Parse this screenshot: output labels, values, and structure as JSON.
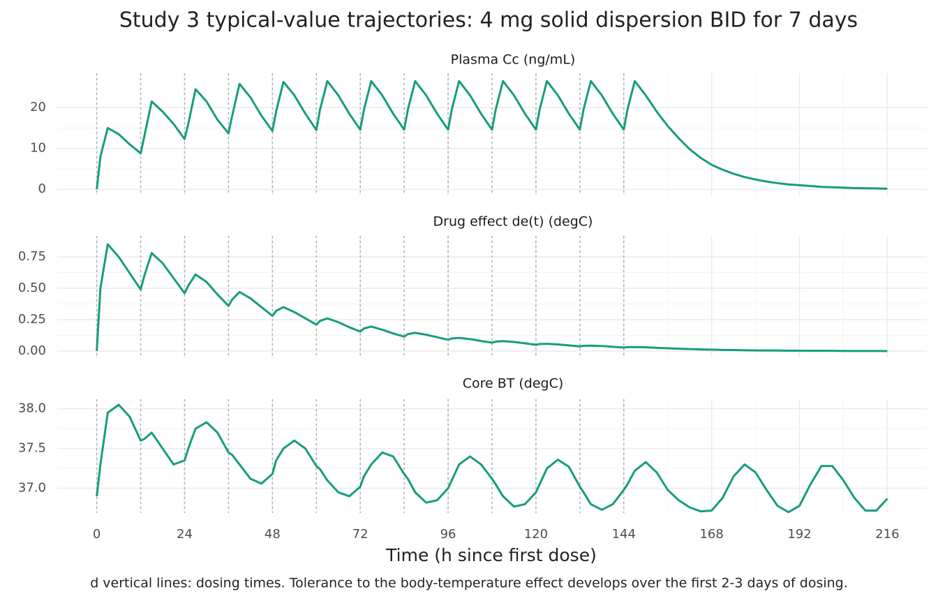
{
  "title": "Study 3 typical-value trajectories: 4 mg solid dispersion BID for 7 days",
  "caption": "d vertical lines: dosing times. Tolerance to the body-temperature effect develops over the first 2-3 days of dosing.",
  "dose_times": [
    0,
    12,
    24,
    36,
    48,
    60,
    72,
    84,
    96,
    108,
    120,
    132,
    144
  ],
  "chart_data": [
    {
      "type": "line",
      "title": "Plasma Cc (ng/mL)",
      "color": "#179c7d",
      "grid": true,
      "x": [
        0,
        1,
        3,
        6,
        9,
        12,
        13,
        15,
        18,
        21,
        24,
        25,
        27,
        30,
        33,
        36,
        37,
        39,
        42,
        45,
        48,
        49,
        51,
        54,
        57,
        60,
        61,
        63,
        66,
        69,
        72,
        73,
        75,
        78,
        81,
        84,
        85,
        87,
        90,
        93,
        96,
        97,
        99,
        102,
        105,
        108,
        109,
        111,
        114,
        117,
        120,
        121,
        123,
        126,
        129,
        132,
        133,
        135,
        138,
        141,
        144,
        145,
        147,
        150,
        153,
        156,
        159,
        162,
        165,
        168,
        171,
        174,
        177,
        180,
        183,
        186,
        189,
        192,
        195,
        198,
        201,
        204,
        207,
        210,
        213,
        216
      ],
      "values": [
        0,
        8,
        15,
        13.5,
        11,
        8.8,
        13,
        21.5,
        19,
        16,
        12.3,
        16,
        24.5,
        21.5,
        17,
        13.7,
        18,
        25.8,
        22.5,
        18,
        14.3,
        19,
        26.3,
        23,
        18.5,
        14.5,
        19.5,
        26.5,
        23,
        18.5,
        14.6,
        19.5,
        26.5,
        23,
        18.5,
        14.6,
        19.5,
        26.5,
        23,
        18.5,
        14.6,
        19.5,
        26.5,
        23,
        18.5,
        14.6,
        19.5,
        26.5,
        23,
        18.5,
        14.6,
        19.5,
        26.5,
        23,
        18.5,
        14.6,
        19.5,
        26.5,
        23,
        18.5,
        14.6,
        19.5,
        26.5,
        23,
        19,
        15.5,
        12.5,
        9.8,
        7.7,
        6.0,
        4.8,
        3.8,
        3.0,
        2.4,
        1.9,
        1.5,
        1.2,
        1.0,
        0.8,
        0.6,
        0.5,
        0.4,
        0.3,
        0.25,
        0.2,
        0.15
      ],
      "xlim": [
        -10.8,
        226.8
      ],
      "xticks": [
        0,
        24,
        48,
        72,
        96,
        120,
        144,
        168,
        192,
        216
      ],
      "ylim": [
        -1.5,
        28.4
      ],
      "yticks": [
        0,
        10,
        20
      ]
    },
    {
      "type": "line",
      "title": "Drug effect de(t) (degC)",
      "color": "#179c7d",
      "grid": true,
      "x": [
        0,
        1,
        3,
        6,
        9,
        12,
        13,
        15,
        18,
        21,
        24,
        25,
        27,
        30,
        33,
        36,
        37,
        39,
        42,
        45,
        48,
        49,
        51,
        54,
        57,
        60,
        61,
        63,
        66,
        69,
        72,
        73,
        75,
        78,
        81,
        84,
        85,
        87,
        90,
        93,
        96,
        97,
        99,
        102,
        105,
        108,
        109,
        111,
        114,
        117,
        120,
        121,
        123,
        126,
        129,
        132,
        133,
        135,
        138,
        141,
        144,
        145,
        147,
        150,
        153,
        156,
        159,
        162,
        165,
        168,
        171,
        174,
        177,
        180,
        183,
        186,
        189,
        192,
        195,
        198,
        201,
        204,
        207,
        210,
        213,
        216
      ],
      "values": [
        0,
        0.5,
        0.85,
        0.75,
        0.62,
        0.49,
        0.6,
        0.78,
        0.7,
        0.58,
        0.46,
        0.52,
        0.61,
        0.55,
        0.45,
        0.36,
        0.41,
        0.47,
        0.42,
        0.35,
        0.28,
        0.32,
        0.35,
        0.31,
        0.26,
        0.21,
        0.24,
        0.26,
        0.23,
        0.19,
        0.155,
        0.18,
        0.195,
        0.17,
        0.14,
        0.115,
        0.135,
        0.145,
        0.13,
        0.11,
        0.09,
        0.1,
        0.105,
        0.095,
        0.08,
        0.067,
        0.075,
        0.079,
        0.072,
        0.062,
        0.05,
        0.056,
        0.058,
        0.053,
        0.045,
        0.037,
        0.042,
        0.043,
        0.04,
        0.034,
        0.028,
        0.031,
        0.032,
        0.03,
        0.026,
        0.022,
        0.019,
        0.016,
        0.013,
        0.011,
        0.009,
        0.008,
        0.006,
        0.005,
        0.004,
        0.004,
        0.003,
        0.003,
        0.002,
        0.002,
        0.002,
        0.001,
        0.001,
        0.001,
        0.001,
        0
      ],
      "xlim": [
        -10.8,
        226.8
      ],
      "xticks": [
        0,
        24,
        48,
        72,
        96,
        120,
        144,
        168,
        192,
        216
      ],
      "ylim": [
        -0.05,
        0.917
      ],
      "yticks": [
        {
          "value": 0,
          "label": "0.00"
        },
        {
          "value": 0.25,
          "label": "0.25"
        },
        {
          "value": 0.5,
          "label": "0.50"
        },
        {
          "value": 0.75,
          "label": "0.75"
        }
      ]
    },
    {
      "type": "line",
      "title": "Core BT (degC)",
      "color": "#179c7d",
      "grid": true,
      "xlabel": "Time (h since first dose)",
      "x": [
        0,
        1,
        3,
        6,
        9,
        12,
        13,
        15,
        18,
        21,
        24,
        25,
        27,
        30,
        33,
        36,
        37,
        39,
        42,
        45,
        48,
        49,
        51,
        54,
        57,
        60,
        61,
        63,
        66,
        69,
        72,
        73,
        75,
        78,
        81,
        84,
        85,
        87,
        90,
        93,
        96,
        97,
        99,
        102,
        105,
        108,
        109,
        111,
        114,
        117,
        120,
        121,
        123,
        126,
        129,
        132,
        133,
        135,
        138,
        141,
        144,
        145,
        147,
        150,
        153,
        156,
        159,
        162,
        165,
        168,
        171,
        174,
        177,
        180,
        183,
        186,
        189,
        192,
        195,
        198,
        201,
        204,
        207,
        210,
        213,
        216
      ],
      "values": [
        36.9,
        37.3,
        37.95,
        38.05,
        37.9,
        37.6,
        37.62,
        37.7,
        37.5,
        37.3,
        37.35,
        37.5,
        37.75,
        37.83,
        37.7,
        37.45,
        37.42,
        37.3,
        37.12,
        37.06,
        37.18,
        37.35,
        37.5,
        37.6,
        37.5,
        37.28,
        37.24,
        37.1,
        36.95,
        36.9,
        37.02,
        37.15,
        37.3,
        37.45,
        37.4,
        37.18,
        37.12,
        36.95,
        36.82,
        36.85,
        37.0,
        37.1,
        37.3,
        37.4,
        37.3,
        37.12,
        37.05,
        36.9,
        36.77,
        36.8,
        36.95,
        37.05,
        37.25,
        37.36,
        37.27,
        37.02,
        36.95,
        36.8,
        36.73,
        36.8,
        36.98,
        37.05,
        37.22,
        37.33,
        37.2,
        36.98,
        36.85,
        36.76,
        36.71,
        36.72,
        36.88,
        37.15,
        37.3,
        37.2,
        36.98,
        36.78,
        36.7,
        36.78,
        37.05,
        37.28,
        37.28,
        37.1,
        36.88,
        36.72,
        36.72,
        36.87
      ],
      "xlim": [
        -10.8,
        226.8
      ],
      "xticks": [
        0,
        24,
        48,
        72,
        96,
        120,
        144,
        168,
        192,
        216
      ],
      "ylim": [
        36.69,
        38.12
      ],
      "yticks": [
        {
          "value": 37,
          "label": "37.0"
        },
        37.5,
        {
          "value": 38,
          "label": "38.0"
        }
      ]
    }
  ]
}
